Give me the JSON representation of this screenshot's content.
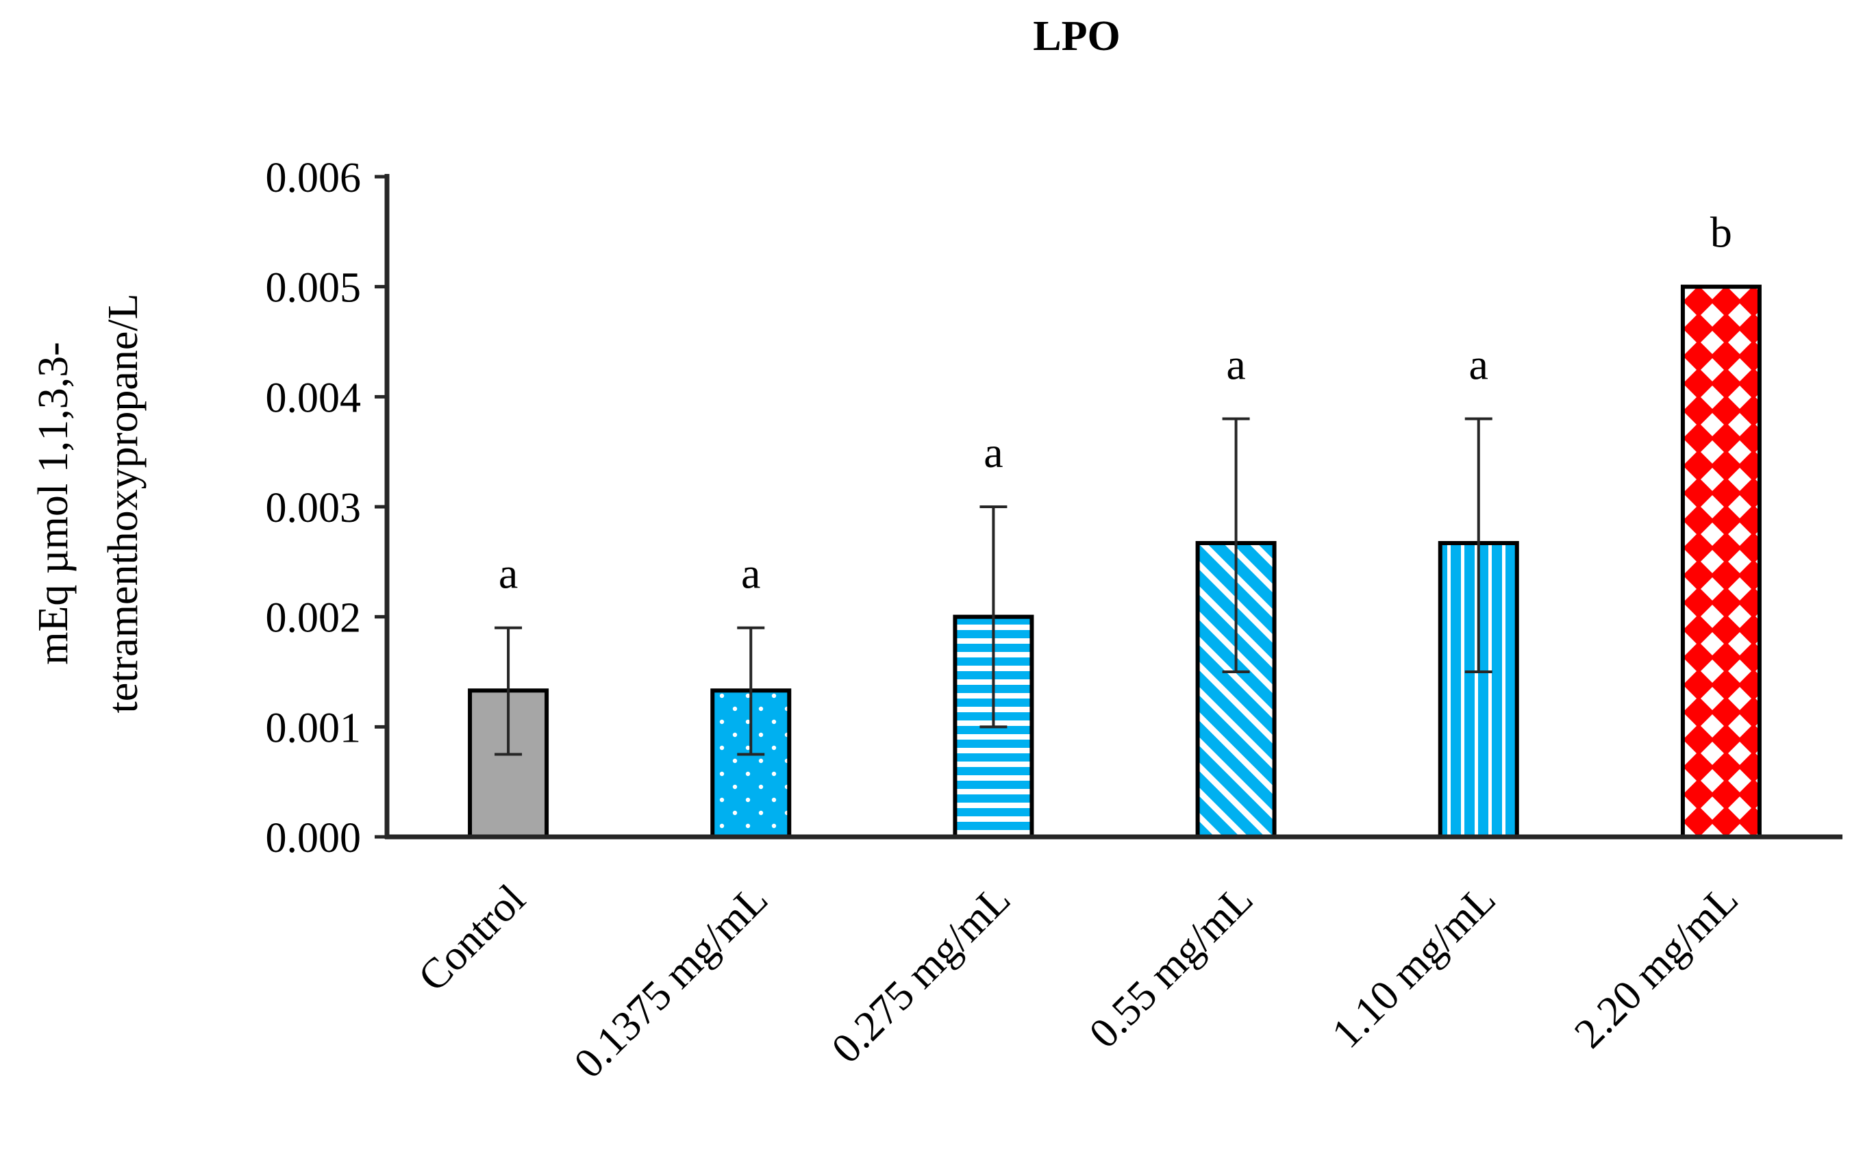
{
  "chart_data": {
    "type": "bar",
    "title": "LPO",
    "ylabel_lines": [
      "mEq µmol 1,1,3,3-",
      "tetramenthoxypropane/L"
    ],
    "xlabel": "",
    "ylim": [
      0,
      0.006
    ],
    "yticks": [
      "0.000",
      "0.001",
      "0.002",
      "0.003",
      "0.004",
      "0.005",
      "0.006"
    ],
    "categories": [
      "Control",
      "0.1375 mg/mL",
      "0.275 mg/mL",
      "0.55 mg/mL",
      "1.10 mg/mL",
      "2.20 mg/mL"
    ],
    "values": [
      0.00133,
      0.00133,
      0.002,
      0.00267,
      0.00267,
      0.005
    ],
    "error_low": [
      0.00075,
      0.00075,
      0.001,
      0.0015,
      0.0015,
      null
    ],
    "error_high": [
      0.0019,
      0.0019,
      0.003,
      0.0038,
      0.0038,
      null
    ],
    "significance_labels": [
      "a",
      "a",
      "a",
      "a",
      "a",
      "b"
    ],
    "bar_patterns": [
      "solid-gray",
      "dots-blue",
      "horizontal-stripes-blue",
      "diagonal-stripes-blue",
      "vertical-stripes-blue",
      "diamond-checker-red"
    ],
    "colors": {
      "gray": "#a6a6a6",
      "blue": "#00b0f0",
      "red": "#ff0000",
      "axis": "#262626"
    },
    "grid": false,
    "legend": "none"
  }
}
